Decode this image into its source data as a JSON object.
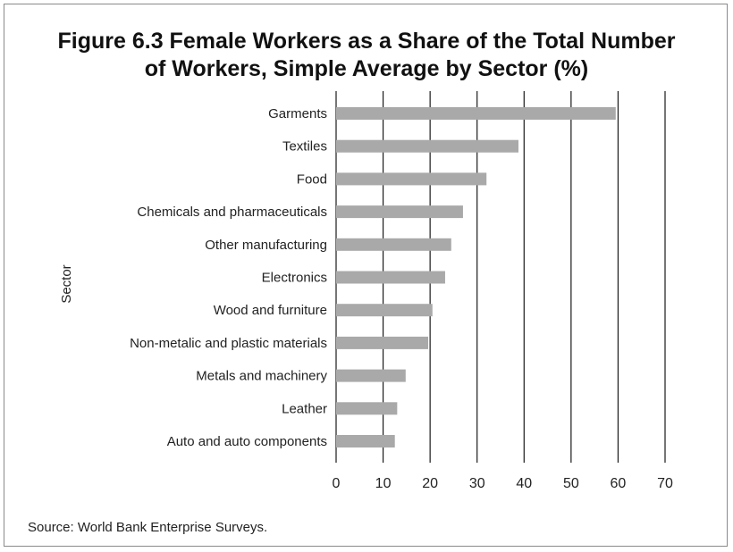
{
  "figure": {
    "title_line1": "Figure 6.3  Female Workers as a Share of the Total Number",
    "title_line2": "of Workers, Simple Average by Sector (%)",
    "source": "Source: World Bank Enterprise Surveys."
  },
  "chart_data": {
    "type": "bar",
    "orientation": "horizontal",
    "title": "Figure 6.3  Female Workers as a Share of the Total Number of Workers, Simple Average by Sector (%)",
    "ylabel": "Sector",
    "xlabel": "",
    "categories": [
      "Garments",
      "Textiles",
      "Food",
      "Chemicals and pharmaceuticals",
      "Other manufacturing",
      "Electronics",
      "Wood and furniture",
      "Non-metalic and plastic materials",
      "Metals and machinery",
      "Leather",
      "Auto and auto components"
    ],
    "values": [
      59.5,
      38.8,
      32.0,
      27.0,
      24.5,
      23.2,
      20.5,
      19.6,
      14.8,
      13.0,
      12.5
    ],
    "xlim": [
      0,
      70
    ],
    "xticks": [
      0,
      10,
      20,
      30,
      40,
      50,
      60,
      70
    ],
    "grid": "vertical",
    "bar_color": "#a9a9a9",
    "grid_color": "#1a1a1a"
  }
}
